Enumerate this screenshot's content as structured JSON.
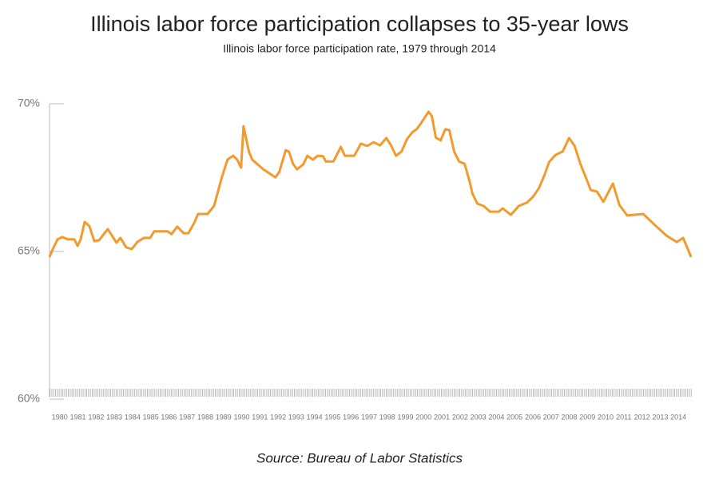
{
  "chart_data": {
    "type": "line",
    "title": "Illinois labor force participation collapses to 35-year lows",
    "subtitle": "Illinois labor force participation rate, 1979 through 2014",
    "source": "Source: Bureau of Labor Statistics",
    "color": "#f29a2e",
    "xlim": [
      1979,
      2014.3
    ],
    "ylim": [
      60,
      70
    ],
    "yticks": [
      {
        "value": 60,
        "label": "60%"
      },
      {
        "value": 65,
        "label": "65%"
      },
      {
        "value": 70,
        "label": "70%"
      }
    ],
    "xticks": [
      1980,
      1981,
      1982,
      1983,
      1984,
      1985,
      1986,
      1987,
      1988,
      1989,
      1990,
      1991,
      1992,
      1993,
      1994,
      1995,
      1996,
      1997,
      1998,
      1999,
      2000,
      2001,
      2002,
      2003,
      2004,
      2005,
      2006,
      2007,
      2008,
      2009,
      2010,
      2011,
      2012,
      2013,
      2014
    ],
    "x": [
      1979.0,
      1979.18,
      1979.44,
      1979.7,
      1980.01,
      1980.36,
      1980.54,
      1980.71,
      1980.93,
      1981.19,
      1981.46,
      1981.72,
      1982.2,
      1982.68,
      1982.9,
      1983.21,
      1983.52,
      1983.82,
      1984.18,
      1984.53,
      1984.75,
      1985.49,
      1985.71,
      1986.02,
      1986.37,
      1986.63,
      1986.94,
      1987.16,
      1987.68,
      1988.04,
      1988.47,
      1988.78,
      1989.09,
      1989.31,
      1989.53,
      1989.66,
      1989.96,
      1990.14,
      1990.4,
      1990.75,
      1991.41,
      1991.63,
      1991.98,
      1992.16,
      1992.38,
      1992.6,
      1992.95,
      1993.17,
      1993.47,
      1993.74,
      1994.04,
      1994.18,
      1994.61,
      1995.01,
      1995.23,
      1995.75,
      1996.11,
      1996.46,
      1996.81,
      1997.16,
      1997.51,
      1997.77,
      1998.04,
      1998.34,
      1998.65,
      1998.96,
      1999.18,
      1999.39,
      1999.57,
      1999.83,
      2000.01,
      2000.23,
      2000.49,
      2000.75,
      2000.97,
      2001.24,
      2001.5,
      2001.81,
      2002.07,
      2002.25,
      2002.51,
      2002.86,
      2003.21,
      2003.69,
      2003.91,
      2004.35,
      2004.79,
      2005.23,
      2005.58,
      2005.89,
      2006.19,
      2006.46,
      2006.81,
      2007.2,
      2007.55,
      2007.86,
      2008.17,
      2008.52,
      2008.74,
      2009.09,
      2009.44,
      2009.96,
      2010.32,
      2010.75,
      2011.63,
      2012.33,
      2012.9,
      2013.47,
      2013.82,
      2014.26
    ],
    "values": [
      64.81,
      65.08,
      65.41,
      65.49,
      65.41,
      65.41,
      65.19,
      65.41,
      66.0,
      65.86,
      65.35,
      65.38,
      65.76,
      65.3,
      65.46,
      65.14,
      65.08,
      65.32,
      65.46,
      65.46,
      65.68,
      65.68,
      65.59,
      65.84,
      65.62,
      65.62,
      65.95,
      66.27,
      66.27,
      66.54,
      67.51,
      68.11,
      68.24,
      68.11,
      67.84,
      69.24,
      68.38,
      68.11,
      67.97,
      67.78,
      67.51,
      67.7,
      68.43,
      68.38,
      67.97,
      67.78,
      67.95,
      68.24,
      68.11,
      68.24,
      68.22,
      68.05,
      68.05,
      68.54,
      68.24,
      68.24,
      68.65,
      68.57,
      68.7,
      68.59,
      68.84,
      68.59,
      68.24,
      68.38,
      68.81,
      69.05,
      69.14,
      69.32,
      69.49,
      69.73,
      69.59,
      68.86,
      68.76,
      69.14,
      69.11,
      68.38,
      68.05,
      67.97,
      67.41,
      66.95,
      66.62,
      66.54,
      66.35,
      66.35,
      66.46,
      66.24,
      66.54,
      66.65,
      66.86,
      67.14,
      67.57,
      68.03,
      68.27,
      68.38,
      68.84,
      68.57,
      67.97,
      67.43,
      67.08,
      67.03,
      66.68,
      67.3,
      66.57,
      66.22,
      66.27,
      65.86,
      65.54,
      65.32,
      65.46,
      64.81
    ]
  }
}
